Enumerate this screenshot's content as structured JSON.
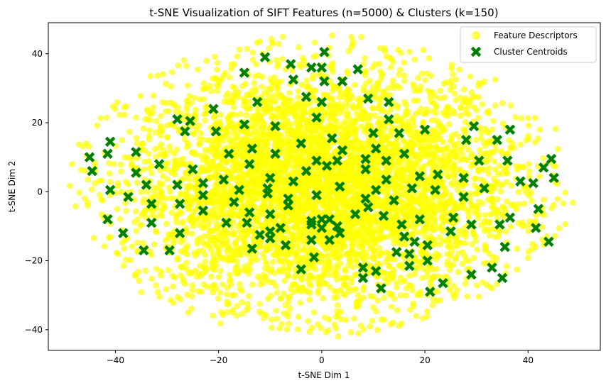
{
  "chart_data": {
    "type": "scatter",
    "title": "t-SNE Visualization of SIFT Features (n=5000) & Clusters (k=150)",
    "xlabel": "t-SNE Dim 1",
    "ylabel": "t-SNE Dim 2",
    "xlim": [
      -53,
      54
    ],
    "ylim": [
      -46,
      49
    ],
    "xticks": [
      -40,
      -20,
      0,
      20,
      40
    ],
    "yticks": [
      -40,
      -20,
      0,
      20,
      40
    ],
    "xtick_labels": [
      "−40",
      "−20",
      "0",
      "20",
      "40"
    ],
    "ytick_labels": [
      "−40",
      "−20",
      "0",
      "20",
      "40"
    ],
    "grid": false,
    "legend": {
      "placement": "top-right",
      "entries": [
        {
          "label": "Feature Descriptors",
          "marker": "circle",
          "color": "#ffff00"
        },
        {
          "label": "Cluster Centroids",
          "marker": "X",
          "color": "#008000"
        }
      ]
    },
    "series": [
      {
        "name": "Feature Descriptors",
        "marker": "circle",
        "color": "#ffff00",
        "alpha": 0.7,
        "n_points": 5000,
        "distribution": "ellipse roughly spanning x -49 to 50, y -42 to 45"
      },
      {
        "name": "Cluster Centroids",
        "marker": "X",
        "color": "#008000",
        "points": [
          [
            -45,
            10
          ],
          [
            -44.5,
            6
          ],
          [
            -41,
            14.5
          ],
          [
            -41.5,
            11
          ],
          [
            -41,
            0.5
          ],
          [
            -41.5,
            -8
          ],
          [
            -38.5,
            -12
          ],
          [
            -36,
            11.5
          ],
          [
            -36,
            5.5
          ],
          [
            -37.5,
            -1.5
          ],
          [
            -34,
            2
          ],
          [
            -33,
            -3.5
          ],
          [
            -33,
            -9
          ],
          [
            -34.5,
            -17
          ],
          [
            -31.5,
            8
          ],
          [
            -29.5,
            -17
          ],
          [
            -28,
            21
          ],
          [
            -28,
            2
          ],
          [
            -27.5,
            -3.5
          ],
          [
            -27.5,
            -12
          ],
          [
            -26.5,
            17.5
          ],
          [
            -25.5,
            20.5
          ],
          [
            -25,
            6.5
          ],
          [
            -23,
            2.5
          ],
          [
            -23,
            -1
          ],
          [
            -23,
            -5.5
          ],
          [
            -21,
            24
          ],
          [
            -20.5,
            17.5
          ],
          [
            -19,
            3.5
          ],
          [
            -18.5,
            -9
          ],
          [
            -18,
            11
          ],
          [
            -17,
            -3
          ],
          [
            -16,
            0.5
          ],
          [
            -15,
            34.5
          ],
          [
            -15,
            19.5
          ],
          [
            -14.5,
            -9
          ],
          [
            -14,
            -6
          ],
          [
            -14,
            8
          ],
          [
            -13.5,
            12.5
          ],
          [
            -13.5,
            -16.5
          ],
          [
            -12.5,
            26
          ],
          [
            -12,
            -12.5
          ],
          [
            -11,
            39
          ],
          [
            -10.5,
            1
          ],
          [
            -10.5,
            -0.5
          ],
          [
            -10,
            -6.5
          ],
          [
            -10,
            -11.5
          ],
          [
            -10,
            -13.5
          ],
          [
            -10,
            4
          ],
          [
            -9,
            11
          ],
          [
            -9,
            19
          ],
          [
            -8,
            -10.5
          ],
          [
            -7,
            -15.5
          ],
          [
            -6.5,
            -2
          ],
          [
            -6.5,
            -4
          ],
          [
            -6,
            37
          ],
          [
            -5.5,
            32.5
          ],
          [
            -5.5,
            3
          ],
          [
            -4,
            14
          ],
          [
            -4,
            -22.5
          ],
          [
            -3,
            27.5
          ],
          [
            -3,
            6
          ],
          [
            -2,
            36
          ],
          [
            -2,
            -8.5
          ],
          [
            -2,
            -9.5
          ],
          [
            -2,
            -14
          ],
          [
            -1.5,
            -19
          ],
          [
            -1,
            21.5
          ],
          [
            -1,
            9
          ],
          [
            -1,
            -1
          ],
          [
            0,
            26
          ],
          [
            0,
            36
          ],
          [
            0,
            -8
          ],
          [
            0,
            -10.5
          ],
          [
            0.5,
            32
          ],
          [
            0.5,
            40.5
          ],
          [
            1,
            7.5
          ],
          [
            1.5,
            -8
          ],
          [
            1.5,
            -14
          ],
          [
            2,
            15.5
          ],
          [
            3,
            -10
          ],
          [
            3,
            9
          ],
          [
            3.5,
            -12
          ],
          [
            3.5,
            1.5
          ],
          [
            4,
            12
          ],
          [
            4,
            32
          ],
          [
            6.5,
            -6.5
          ],
          [
            7,
            35.5
          ],
          [
            8.5,
            -2
          ],
          [
            8,
            -22
          ],
          [
            8,
            -25
          ],
          [
            8.5,
            6.5
          ],
          [
            8.5,
            9.5
          ],
          [
            9,
            27
          ],
          [
            9,
            -4.5
          ],
          [
            10,
            17
          ],
          [
            10.5,
            12.5
          ],
          [
            10.5,
            0.5
          ],
          [
            10.5,
            -23
          ],
          [
            11.5,
            -28
          ],
          [
            12,
            -7
          ],
          [
            12.5,
            3.5
          ],
          [
            12.5,
            9
          ],
          [
            13,
            21
          ],
          [
            13,
            26
          ],
          [
            14,
            -2.5
          ],
          [
            14.5,
            -17.5
          ],
          [
            15,
            17
          ],
          [
            15.5,
            -9.5
          ],
          [
            16,
            11
          ],
          [
            16,
            -13
          ],
          [
            17,
            -18
          ],
          [
            17,
            -21.5
          ],
          [
            17.5,
            1
          ],
          [
            18,
            -14.5
          ],
          [
            19,
            4.5
          ],
          [
            19,
            -8
          ],
          [
            20,
            18
          ],
          [
            20.5,
            -15.5
          ],
          [
            20.5,
            -20
          ],
          [
            21,
            -29
          ],
          [
            22,
            0.5
          ],
          [
            22.5,
            5
          ],
          [
            23.5,
            -26.5
          ],
          [
            25,
            -11.5
          ],
          [
            25.5,
            -7.5
          ],
          [
            27.5,
            -1.5
          ],
          [
            27.5,
            4
          ],
          [
            28,
            15
          ],
          [
            29,
            -9.5
          ],
          [
            29,
            -24
          ],
          [
            29.5,
            19
          ],
          [
            30.5,
            9
          ],
          [
            31.5,
            1
          ],
          [
            33,
            -22
          ],
          [
            34,
            15
          ],
          [
            34.5,
            -9.5
          ],
          [
            35,
            -25
          ],
          [
            35.5,
            -16
          ],
          [
            36,
            9
          ],
          [
            36.5,
            -7.5
          ],
          [
            36.5,
            18
          ],
          [
            38.5,
            3
          ],
          [
            41,
            2.5
          ],
          [
            41.5,
            -10.5
          ],
          [
            42,
            -5
          ],
          [
            43,
            7
          ],
          [
            44,
            -14.5
          ],
          [
            44.5,
            9.5
          ],
          [
            45,
            4
          ]
        ]
      }
    ]
  }
}
